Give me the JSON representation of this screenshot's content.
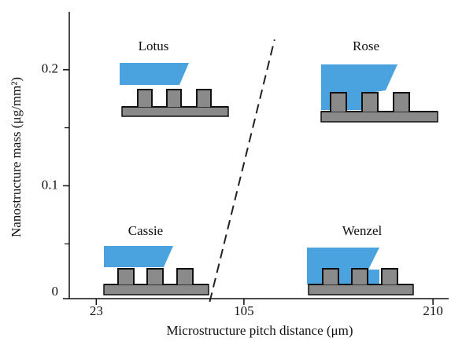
{
  "chart_data": {
    "type": "line",
    "xlabel": "Microstructure pitch distance (μm)",
    "ylabel": "Nanostructure mass (μg/mm²)",
    "xlim": [
      8,
      220
    ],
    "ylim": [
      0,
      0.25
    ],
    "xticks": [
      23,
      105,
      210
    ],
    "yticks": [
      0,
      0.1,
      0.2
    ],
    "yminor": [
      0.05,
      0.15
    ],
    "series": [
      {
        "color": "#222222",
        "dashed": true,
        "x": [
          86,
          122
        ],
        "values": [
          0,
          0.226
        ]
      }
    ],
    "annotations": [
      "Lotus",
      "Rose",
      "Cassie",
      "Wenzel"
    ]
  }
}
